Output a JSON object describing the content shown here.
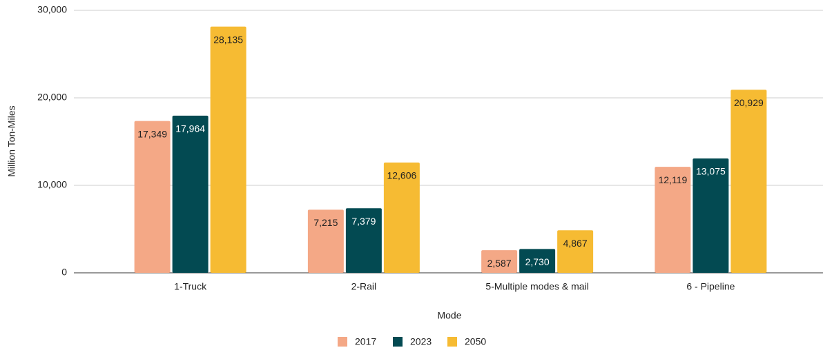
{
  "chart_data": {
    "type": "bar",
    "categories": [
      "1-Truck",
      "2-Rail",
      "5-Multiple modes & mail",
      "6 - Pipeline"
    ],
    "series": [
      {
        "name": "2017",
        "color": "#f4a886",
        "values": [
          17349,
          7215,
          2587,
          12119
        ],
        "value_labels": [
          "17,349",
          "7,215",
          "2,587",
          "12,119"
        ]
      },
      {
        "name": "2023",
        "color": "#034a52",
        "values": [
          17964,
          7379,
          2730,
          13075
        ],
        "value_labels": [
          "17,964",
          "7,379",
          "2,730",
          "13,075"
        ]
      },
      {
        "name": "2050",
        "color": "#f6bb33",
        "values": [
          28135,
          12606,
          4867,
          20929
        ],
        "value_labels": [
          "28,135",
          "12,606",
          "4,867",
          "20,929"
        ]
      }
    ],
    "x_label": "Mode",
    "y_label": "Million Ton-Miles",
    "ylim": [
      0,
      30000
    ],
    "yticks": [
      0,
      {
        "value": 10000,
        "label": "10,000"
      },
      {
        "value": 20000,
        "label": "20,000"
      },
      {
        "value": 30000,
        "label": "30,000"
      }
    ],
    "grid": true,
    "legend": "bottom"
  }
}
